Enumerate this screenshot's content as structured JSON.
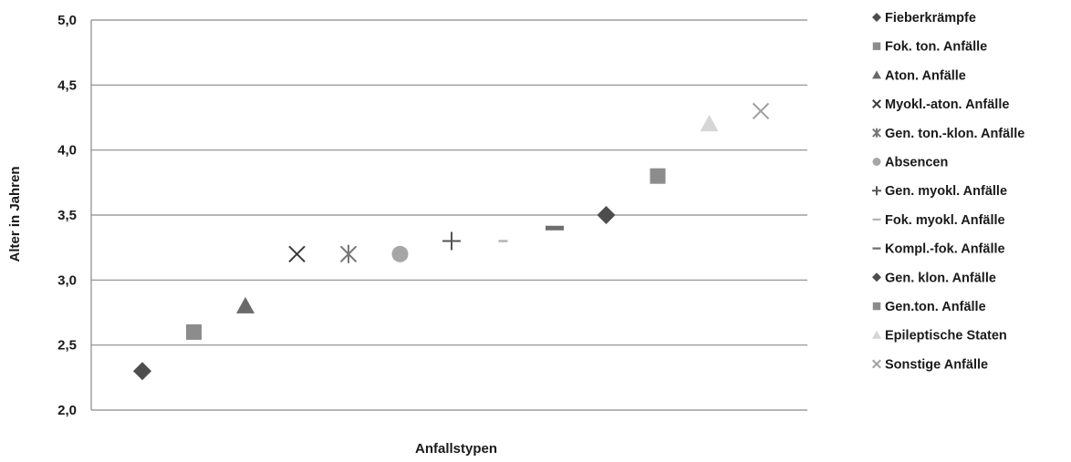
{
  "chart_data": {
    "type": "scatter",
    "xlabel": "Anfallstypen",
    "ylabel": "Alter in Jahren",
    "ylim": [
      2.0,
      5.0
    ],
    "yticks": [
      "2,0",
      "2,5",
      "3,0",
      "3,5",
      "4,0",
      "4,5",
      "5,0"
    ],
    "grid": true,
    "legend_position": "right",
    "series": [
      {
        "name": "Fieberkrämpfe",
        "x": 1,
        "y": 2.3,
        "marker": "diamond",
        "color": "#4d4d4d"
      },
      {
        "name": "Fok. ton. Anfälle",
        "x": 2,
        "y": 2.6,
        "marker": "square",
        "color": "#8c8c8c"
      },
      {
        "name": "Aton. Anfälle",
        "x": 3,
        "y": 2.8,
        "marker": "triangle",
        "color": "#6a6a6a"
      },
      {
        "name": "Myokl.-aton. Anfälle",
        "x": 4,
        "y": 3.2,
        "marker": "x",
        "color": "#3a3a3a"
      },
      {
        "name": "Gen. ton.-klon. Anfälle",
        "x": 5,
        "y": 3.2,
        "marker": "star",
        "color": "#777777"
      },
      {
        "name": "Absencen",
        "x": 6,
        "y": 3.2,
        "marker": "circle",
        "color": "#a6a6a6"
      },
      {
        "name": "Gen. myokl. Anfälle",
        "x": 7,
        "y": 3.3,
        "marker": "plus",
        "color": "#555555"
      },
      {
        "name": "Fok. myokl. Anfälle",
        "x": 8,
        "y": 3.3,
        "marker": "dash",
        "color": "#b3b3b3"
      },
      {
        "name": "Kompl.-fok. Anfälle",
        "x": 9,
        "y": 3.4,
        "marker": "dash",
        "color": "#6e6e6e"
      },
      {
        "name": "Gen. klon. Anfälle",
        "x": 10,
        "y": 3.5,
        "marker": "diamond",
        "color": "#4d4d4d"
      },
      {
        "name": "Gen.ton. Anfälle",
        "x": 11,
        "y": 3.8,
        "marker": "square",
        "color": "#8c8c8c"
      },
      {
        "name": "Epileptische Staten",
        "x": 12,
        "y": 4.2,
        "marker": "triangle",
        "color": "#d6d6d6"
      },
      {
        "name": "Sonstige Anfälle",
        "x": 13,
        "y": 4.3,
        "marker": "x",
        "color": "#a0a0a0"
      }
    ]
  }
}
